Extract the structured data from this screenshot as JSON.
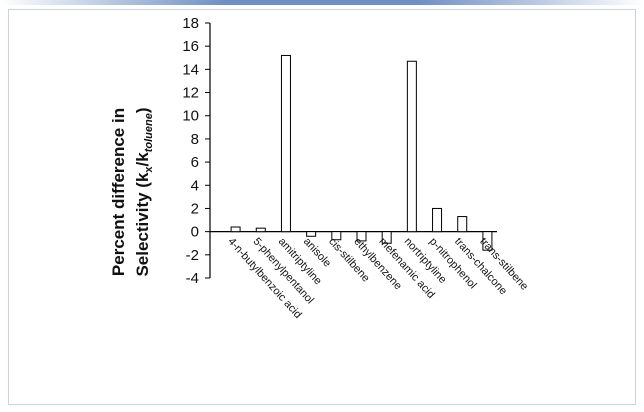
{
  "chart_data": {
    "type": "bar",
    "categories": [
      "4-n-butylbenzoic acid",
      "5-phenylpentanol",
      "amitriptyline",
      "anisole",
      "cis-stilbene",
      "ethylbenzene",
      "mefenamic acid",
      "nortriptyline",
      "p-nitrophenol",
      "trans-chalcone",
      "trans-stilbene"
    ],
    "values": [
      0.4,
      0.3,
      15.2,
      -0.4,
      -0.7,
      -0.8,
      -1.0,
      14.7,
      2.0,
      1.3,
      -1.6
    ],
    "title": "",
    "xlabel": "",
    "ylabel": {
      "line1": "Percent difference in",
      "line2_prefix": "Selectivity (k",
      "sub_x": "x",
      "mid": "/k",
      "sub_ref": "toluene",
      "suffix": ")"
    },
    "ylim": [
      -4,
      18
    ],
    "yticks": [
      "18",
      "16",
      "14",
      "12",
      "10",
      "8",
      "6",
      "4",
      "2",
      "0",
      "-2",
      "-4"
    ],
    "grid": false,
    "legend": "none"
  },
  "colors": {
    "accent_bar": "#6f8fc2",
    "border": "#c9d3e2",
    "bar_fill": "#ffffff",
    "bar_stroke": "#000000"
  }
}
